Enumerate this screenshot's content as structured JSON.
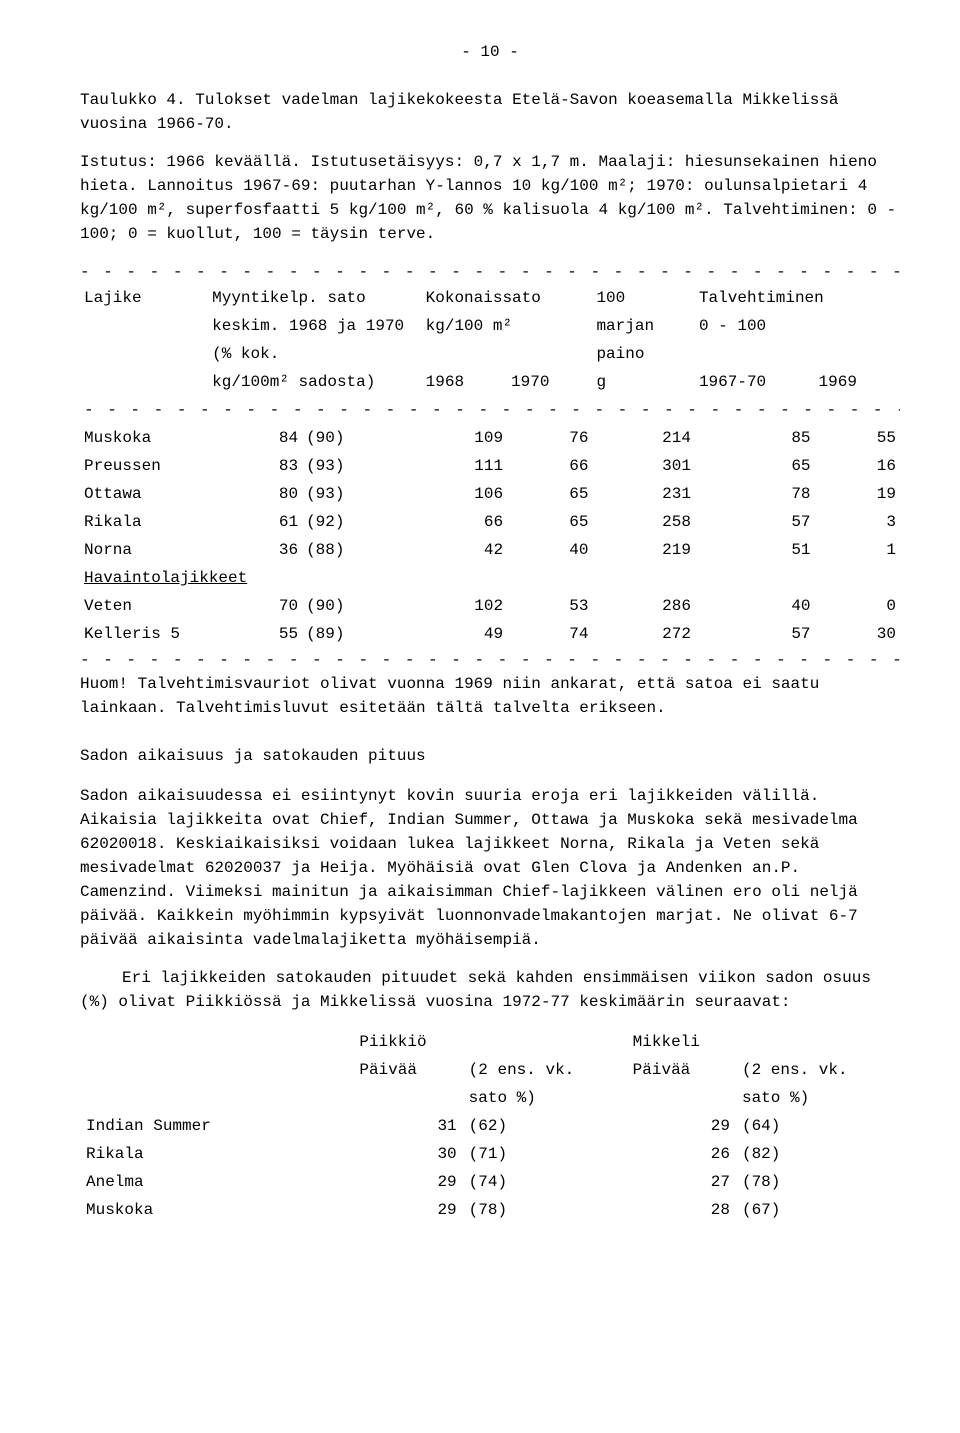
{
  "page_number": "- 10 -",
  "title_para": "Taulukko 4.  Tulokset vadelman lajikekokeesta Etelä-Savon koeasemalla Mikkelissä vuosina 1966-70.",
  "intro_para": "Istutus: 1966 keväällä. Istutusetäisyys: 0,7 x 1,7 m. Maalaji: hiesunsekainen hieno hieta. Lannoitus 1967-69: puutarhan Y-lannos 10 kg/100 m²; 1970: oulunsalpietari 4 kg/100 m², superfosfaatti 5 kg/100 m², 60 % kalisuola 4 kg/100 m². Talvehtiminen: 0 - 100; 0 = kuollut, 100 = täysin terve.",
  "dash": "- - - - - - - - - - - - - - - - - - - - - - - - - - - - - - - - - - - - - - - - - - - - -",
  "t1_headers": {
    "c1": "Lajike",
    "c2a": "Myyntikelp. sato",
    "c2b": "keskim. 1968 ja 1970",
    "c2c": "      (% kok.",
    "c2d": "kg/100m² sadosta)",
    "c3a": "Kokonaissato",
    "c3b": "kg/100 m²",
    "c3c": "1968",
    "c3d": "1970",
    "c4a": "100",
    "c4b": "marjan",
    "c4c": "paino",
    "c4d": "g",
    "c5a": "Talvehtiminen",
    "c5b": "0 - 100",
    "c5c": "1967-70",
    "c5d": "1969"
  },
  "t1_rows": [
    {
      "name": "Muskoka",
      "a": "84",
      "b": "(90)",
      "c": "109",
      "d": "76",
      "e": "214",
      "f": "85",
      "g": "55"
    },
    {
      "name": "Preussen",
      "a": "83",
      "b": "(93)",
      "c": "111",
      "d": "66",
      "e": "301",
      "f": "65",
      "g": "16"
    },
    {
      "name": "Ottawa",
      "a": "80",
      "b": "(93)",
      "c": "106",
      "d": "65",
      "e": "231",
      "f": "78",
      "g": "19"
    },
    {
      "name": "Rikala",
      "a": "61",
      "b": "(92)",
      "c": "66",
      "d": "65",
      "e": "258",
      "f": "57",
      "g": "3"
    },
    {
      "name": "Norna",
      "a": "36",
      "b": "(88)",
      "c": "42",
      "d": "40",
      "e": "219",
      "f": "51",
      "g": "1"
    }
  ],
  "t1_sub": "Havaintolajikkeet",
  "t1_rows2": [
    {
      "name": "Veten",
      "a": "70",
      "b": "(90)",
      "c": "102",
      "d": "53",
      "e": "286",
      "f": "40",
      "g": "0"
    },
    {
      "name": "Kelleris 5",
      "a": "55",
      "b": "(89)",
      "c": "49",
      "d": "74",
      "e": "272",
      "f": "57",
      "g": "30"
    }
  ],
  "huom": "Huom!  Talvehtimisvauriot olivat vuonna 1969 niin ankarat, että satoa ei saatu lainkaan. Talvehtimisluvut esitetään tältä talvelta erikseen.",
  "subhead1": "Sadon aikaisuus ja satokauden pituus",
  "body1": "Sadon aikaisuudessa ei esiintynyt kovin suuria eroja eri lajikkeiden välillä. Aikaisia lajikkeita ovat  Chief, Indian Summer, Ottawa ja Muskoka sekä mesivadelma 62020018. Keskiaikaisiksi voidaan lukea lajikkeet Norna, Rikala ja Veten sekä mesivadelmat 62020037 ja Heija. Myöhäisiä ovat Glen Clova ja Andenken an.P. Camenzind. Viimeksi mainitun ja aikaisimman Chief-lajikkeen välinen ero oli neljä päivää. Kaikkein myöhimmin kypsyivät luonnonvadelmakantojen marjat. Ne olivat 6-7 päivää aikaisinta vadelmalajiketta myöhäisempiä.",
  "body2": "Eri lajikkeiden satokauden pituudet sekä kahden ensimmäisen viikon sadon osuus (%) olivat Piikkiössä ja Mikkelissä vuosina 1972-77 keskimäärin seuraavat:",
  "t2_headers": {
    "h1": "Piikkiö",
    "h2": "Mikkeli",
    "hh1": "Päivää",
    "hh2": "(2 ens. vk.",
    "hh2b": "sato %)",
    "hh3": "Päivää",
    "hh4": "(2 ens. vk.",
    "hh4b": "sato %)"
  },
  "t2_rows": [
    {
      "name": "Indian Summer",
      "a": "31",
      "b": "(62)",
      "c": "29",
      "d": "(64)"
    },
    {
      "name": "Rikala",
      "a": "30",
      "b": "(71)",
      "c": "26",
      "d": "(82)"
    },
    {
      "name": "Anelma",
      "a": "29",
      "b": "(74)",
      "c": "27",
      "d": "(78)"
    },
    {
      "name": "Muskoka",
      "a": "29",
      "b": "(78)",
      "c": "28",
      "d": "(67)"
    }
  ]
}
